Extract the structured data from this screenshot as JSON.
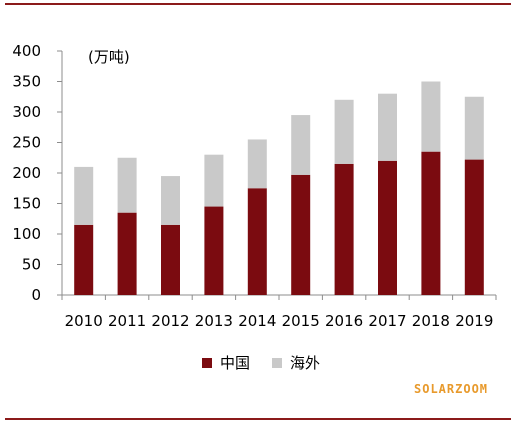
{
  "chart_data": {
    "type": "bar",
    "stacked": true,
    "unit_label": "(万吨)",
    "categories": [
      "2010",
      "2011",
      "2012",
      "2013",
      "2014",
      "2015",
      "2016",
      "2017",
      "2018",
      "2019"
    ],
    "series": [
      {
        "name": "中国",
        "color": "#7b0b10",
        "values": [
          115,
          135,
          115,
          145,
          175,
          197,
          215,
          220,
          235,
          222
        ]
      },
      {
        "name": "海外",
        "color": "#c9c9c9",
        "values": [
          95,
          90,
          80,
          85,
          80,
          98,
          105,
          110,
          115,
          103
        ]
      }
    ],
    "yticks": [
      "0",
      "50",
      "100",
      "150",
      "200",
      "250",
      "300",
      "350",
      "400"
    ],
    "ylim": [
      0,
      400
    ],
    "grid": false,
    "legend_position": "bottom"
  },
  "watermark": "SOLARZOOM"
}
